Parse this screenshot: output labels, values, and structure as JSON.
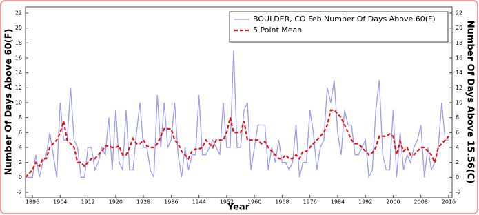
{
  "chart_data": {
    "type": "line",
    "legend_text": "BOULDER, CO  Feb  Number Of Days Above 60(F)",
    "x_label": "Year",
    "y_label": "Number Of Days Above 60(F)",
    "y2_label": "Number Of Days Above 15.56(C)",
    "x": [
      1894,
      1895,
      1896,
      1897,
      1898,
      1899,
      1900,
      1901,
      1902,
      1903,
      1904,
      1905,
      1906,
      1907,
      1908,
      1909,
      1910,
      1911,
      1912,
      1913,
      1914,
      1915,
      1916,
      1917,
      1918,
      1919,
      1920,
      1921,
      1922,
      1923,
      1924,
      1925,
      1926,
      1927,
      1928,
      1929,
      1930,
      1931,
      1932,
      1933,
      1934,
      1935,
      1936,
      1937,
      1938,
      1939,
      1940,
      1941,
      1942,
      1943,
      1944,
      1945,
      1946,
      1947,
      1948,
      1949,
      1950,
      1951,
      1952,
      1953,
      1954,
      1955,
      1956,
      1957,
      1958,
      1959,
      1960,
      1961,
      1962,
      1963,
      1964,
      1965,
      1966,
      1967,
      1968,
      1969,
      1970,
      1971,
      1972,
      1973,
      1974,
      1975,
      1976,
      1977,
      1978,
      1979,
      1980,
      1981,
      1982,
      1983,
      1984,
      1985,
      1986,
      1987,
      1988,
      1989,
      1990,
      1991,
      1992,
      1993,
      1994,
      1995,
      1996,
      1997,
      1998,
      1999,
      2000,
      2001,
      2002,
      2003,
      2004,
      2005,
      2006,
      2007,
      2008,
      2009,
      2010,
      2011,
      2012,
      2013,
      2014,
      2015,
      2016
    ],
    "series": [
      {
        "name": "BOULDER, CO  Feb  Number Of Days Above 60(F)",
        "color": "#9c9cf0",
        "dash": false,
        "values": [
          0,
          0,
          0,
          3,
          0,
          2,
          3,
          6,
          3,
          0,
          10,
          5,
          5,
          12,
          5,
          4,
          0,
          0,
          4,
          4,
          1,
          2,
          4,
          3,
          8,
          1,
          9,
          2,
          1,
          9,
          1,
          1,
          6,
          10,
          4,
          4,
          1,
          0,
          11,
          4,
          10,
          4,
          5,
          10,
          3,
          0,
          4,
          1,
          3,
          3,
          11,
          3,
          3,
          4,
          5,
          4,
          3,
          10,
          4,
          4,
          17,
          4,
          4,
          9,
          10,
          1,
          4,
          7,
          7,
          7,
          1,
          4,
          2,
          5,
          2,
          2,
          1,
          2,
          7,
          0,
          2,
          2,
          9,
          6,
          1,
          4,
          5,
          12,
          10,
          13,
          6,
          3,
          9,
          7,
          7,
          3,
          3,
          4,
          5,
          0,
          1,
          9,
          13,
          3,
          1,
          1,
          9,
          0,
          6,
          1,
          3,
          2,
          4,
          5,
          7,
          0,
          4,
          1,
          2,
          4,
          10,
          5,
          5
        ]
      },
      {
        "name": "5 Point Mean",
        "color": "#e81010",
        "dash": true,
        "values": [
          0,
          0.5,
          1,
          2,
          1.5,
          2.5,
          2.5,
          4,
          4.5,
          5,
          6,
          7.5,
          5,
          4.5,
          4,
          2,
          2,
          1.5,
          2,
          2.5,
          2.5,
          3,
          3.5,
          4.2,
          4.2,
          4,
          4,
          4.2,
          3,
          3,
          4,
          5.2,
          4.5,
          4.5,
          5,
          4.2,
          4,
          4,
          4.5,
          5.5,
          6.5,
          6.5,
          6.5,
          5,
          4.5,
          3.5,
          3,
          2.5,
          3.5,
          3.8,
          3.8,
          4,
          5,
          4.5,
          4,
          5,
          5,
          5,
          6,
          8,
          6,
          6,
          6,
          7.5,
          5,
          5,
          5,
          5,
          4.5,
          4.8,
          4,
          3.5,
          3,
          2.5,
          2.5,
          3,
          2.5,
          2.5,
          3,
          2.5,
          3.5,
          3.5,
          4,
          4.5,
          5,
          5.5,
          6,
          7,
          9,
          9,
          8.5,
          8,
          7,
          6,
          5,
          4.5,
          4.5,
          4,
          3.5,
          3,
          3.3,
          4,
          5.5,
          5.5,
          5.5,
          5.8,
          5.5,
          3,
          4.8,
          3.5,
          4,
          3,
          3,
          3.5,
          4,
          4,
          3.5,
          3,
          2,
          4,
          4.5,
          5,
          5.5
        ]
      }
    ],
    "xlim": [
      1894,
      2017
    ],
    "xticks": [
      1896,
      1904,
      1912,
      1920,
      1928,
      1936,
      1944,
      1952,
      1960,
      1968,
      1976,
      1984,
      1992,
      2000,
      2008,
      2016
    ],
    "ylim": [
      -2,
      22
    ],
    "yticks": [
      -2,
      0,
      2,
      4,
      6,
      8,
      10,
      12,
      14,
      16,
      18,
      20,
      22
    ],
    "y2lim": [
      -2,
      22
    ],
    "y2ticks": [
      -2,
      0,
      2,
      4,
      6,
      8,
      10,
      12,
      14,
      16,
      18,
      20,
      22
    ],
    "legend": "upper right"
  }
}
